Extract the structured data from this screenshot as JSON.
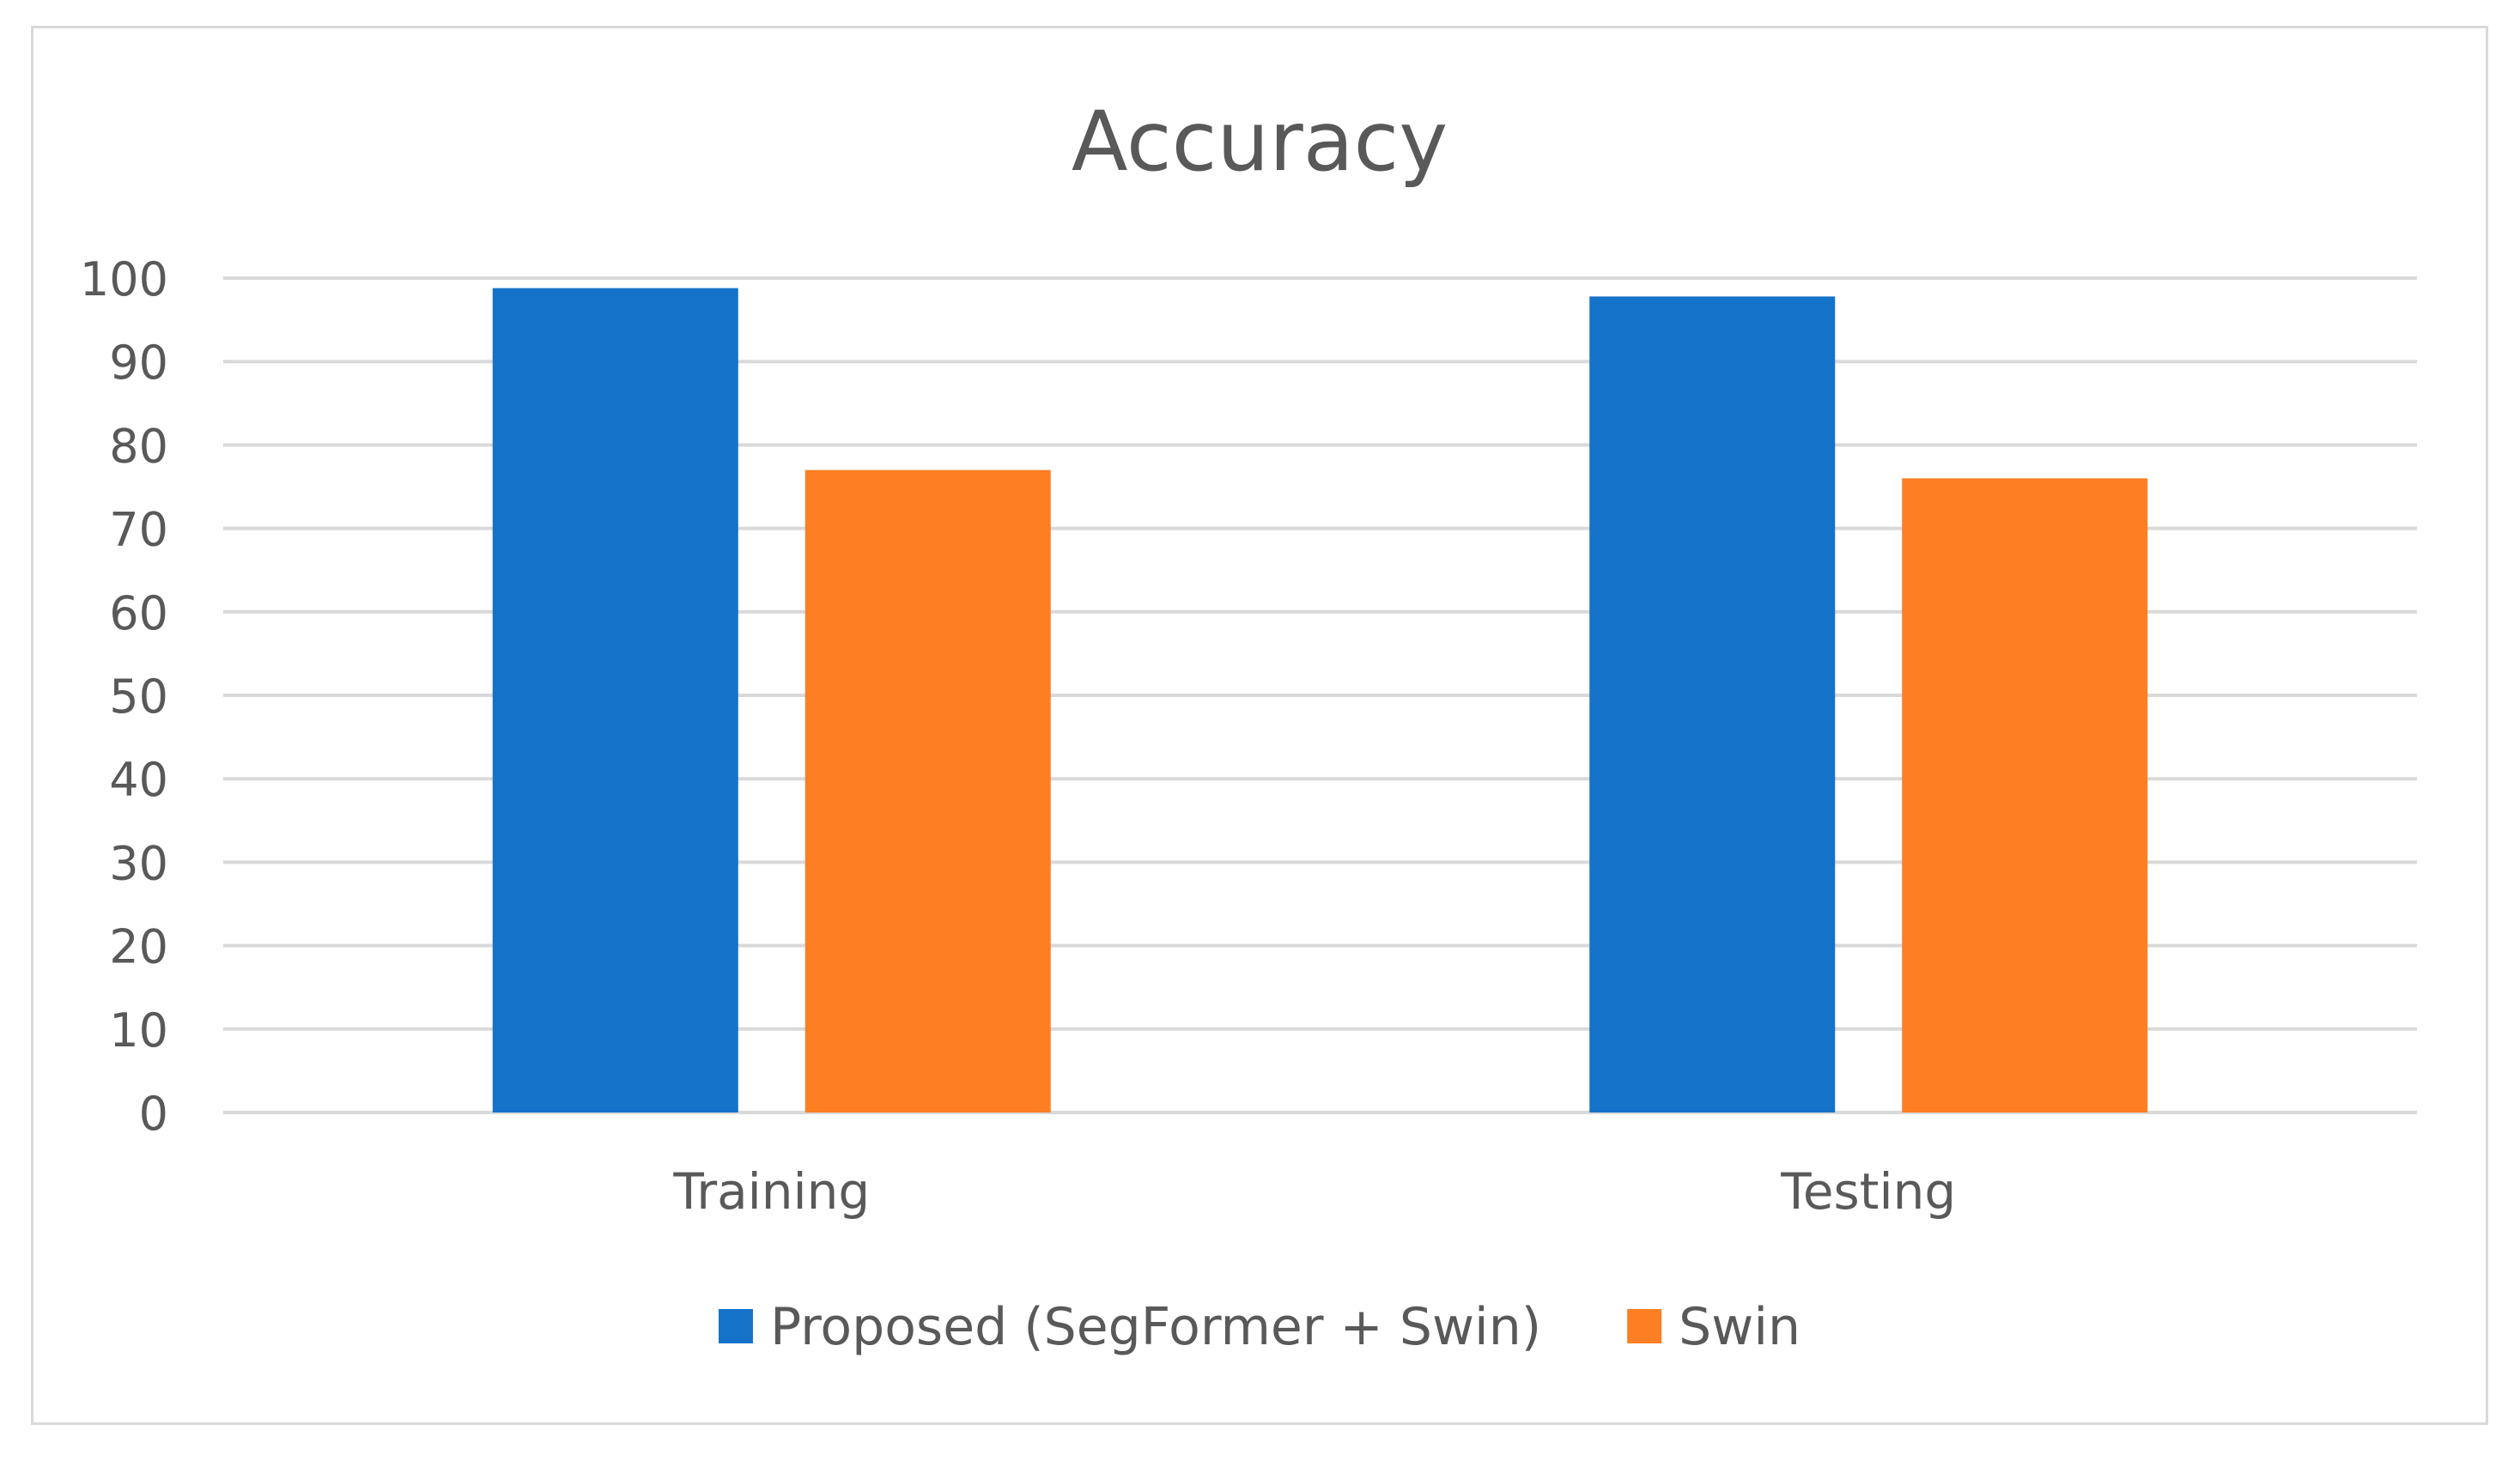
{
  "chart_data": {
    "type": "bar",
    "title": "Accuracy",
    "categories": [
      "Training",
      "Testing"
    ],
    "series": [
      {
        "name": "Proposed (SegFormer + Swin)",
        "values": [
          98.8,
          97.8
        ],
        "color": "#1572c9"
      },
      {
        "name": "Swin",
        "values": [
          77,
          76
        ],
        "color": "#fd7e23"
      }
    ],
    "yticks": [
      0,
      10,
      20,
      30,
      40,
      50,
      60,
      70,
      80,
      90,
      100
    ],
    "ylim": [
      0,
      100
    ],
    "xlabel": "",
    "ylabel": "",
    "grid": true,
    "legend_position": "bottom"
  }
}
